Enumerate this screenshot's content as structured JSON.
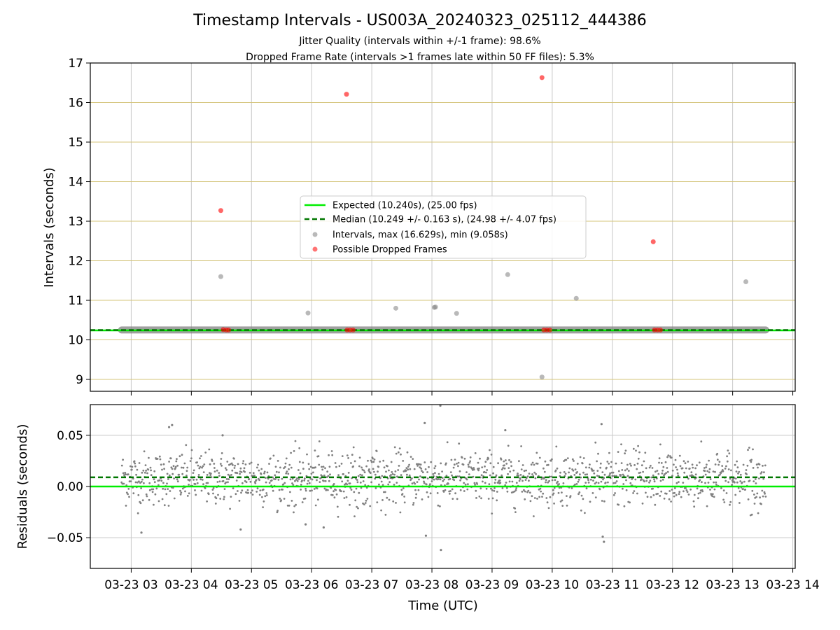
{
  "figure": {
    "title": "Timestamp Intervals - US003A_20240323_025112_444386",
    "subtitle_line1": "Jitter Quality (intervals within +/-1 frame): 98.6%",
    "subtitle_line2": "Dropped Frame Rate (intervals >1 frames late within 50 FF files): 5.3%",
    "xlabel": "Time (UTC)"
  },
  "colors": {
    "expected": "#00ee00",
    "median": "#007700",
    "intervals": "#808080",
    "dropped": "#ff0000",
    "hgrid_top": "#d4c47a",
    "grid": "#c8c8c8"
  },
  "chart_data": [
    {
      "type": "scatter",
      "ylabel": "Intervals (seconds)",
      "ylim": [
        8.7,
        17
      ],
      "yticks": [
        9,
        10,
        11,
        12,
        13,
        14,
        15,
        16,
        17
      ],
      "xlim_hours": [
        2.32,
        14.04
      ],
      "expected_value": 10.24,
      "median_value": 10.249,
      "band": {
        "x_start_hours": 2.84,
        "x_end_hours": 13.55,
        "y": 10.25
      },
      "legend": {
        "position": "center",
        "entries": [
          {
            "label": "Expected (10.240s), (25.00 fps)",
            "kind": "solid-line",
            "color_key": "expected"
          },
          {
            "label": "Median (10.249 +/- 0.163 s), (24.98 +/- 4.07 fps)",
            "kind": "dashed-line",
            "color_key": "median"
          },
          {
            "label": "Intervals, max (16.629s), min (9.058s)",
            "kind": "marker",
            "color_key": "intervals"
          },
          {
            "label": "Possible Dropped Frames",
            "kind": "marker",
            "color_key": "dropped"
          }
        ]
      },
      "series": [
        {
          "name": "Intervals, max (16.629s), min (9.058s)",
          "points": [
            {
              "x": 4.49,
              "y": 11.6
            },
            {
              "x": 5.94,
              "y": 10.68
            },
            {
              "x": 7.4,
              "y": 10.8
            },
            {
              "x": 8.06,
              "y": 10.83
            },
            {
              "x": 8.04,
              "y": 10.82
            },
            {
              "x": 8.41,
              "y": 10.67
            },
            {
              "x": 9.26,
              "y": 11.65
            },
            {
              "x": 9.83,
              "y": 9.06
            },
            {
              "x": 10.4,
              "y": 11.05
            },
            {
              "x": 13.22,
              "y": 11.47
            }
          ]
        },
        {
          "name": "Possible Dropped Frames",
          "points": [
            {
              "x": 4.49,
              "y": 13.27
            },
            {
              "x": 6.58,
              "y": 16.21
            },
            {
              "x": 9.83,
              "y": 16.63
            },
            {
              "x": 11.68,
              "y": 12.48
            },
            {
              "x": 4.53,
              "y": 10.26
            },
            {
              "x": 4.58,
              "y": 10.25
            },
            {
              "x": 4.62,
              "y": 10.25
            },
            {
              "x": 6.59,
              "y": 10.25
            },
            {
              "x": 6.64,
              "y": 10.25
            },
            {
              "x": 6.69,
              "y": 10.25
            },
            {
              "x": 9.86,
              "y": 10.25
            },
            {
              "x": 9.91,
              "y": 10.25
            },
            {
              "x": 9.96,
              "y": 10.25
            },
            {
              "x": 11.7,
              "y": 10.25
            },
            {
              "x": 11.75,
              "y": 10.25
            },
            {
              "x": 11.8,
              "y": 10.25
            }
          ]
        }
      ]
    },
    {
      "type": "scatter",
      "ylabel": "Residuals (seconds)",
      "ylim": [
        -0.08,
        0.08
      ],
      "yticks": [
        0.05,
        0.0,
        -0.05
      ],
      "ytick_labels": [
        "0.05",
        "0.00",
        "−0.05"
      ],
      "expected_value": 0.0,
      "median_value": 0.009,
      "x_range_hours": [
        2.84,
        13.55
      ],
      "residual_mean": 0.008,
      "residual_spread_sd": 0.013,
      "series": [
        {
          "name": "Residuals",
          "outlier_points": [
            {
              "x": 3.17,
              "y": -0.045
            },
            {
              "x": 3.63,
              "y": 0.058
            },
            {
              "x": 3.68,
              "y": 0.06
            },
            {
              "x": 4.52,
              "y": 0.05
            },
            {
              "x": 4.82,
              "y": -0.042
            },
            {
              "x": 5.9,
              "y": -0.037
            },
            {
              "x": 6.2,
              "y": -0.04
            },
            {
              "x": 7.88,
              "y": 0.062
            },
            {
              "x": 7.9,
              "y": -0.048
            },
            {
              "x": 8.14,
              "y": 0.079
            },
            {
              "x": 8.15,
              "y": -0.062
            },
            {
              "x": 9.22,
              "y": 0.055
            },
            {
              "x": 10.82,
              "y": 0.061
            },
            {
              "x": 10.84,
              "y": -0.049
            },
            {
              "x": 10.86,
              "y": -0.054
            }
          ]
        }
      ]
    }
  ],
  "xaxis": {
    "ticks_hours": [
      3,
      4,
      5,
      6,
      7,
      8,
      9,
      10,
      11,
      12,
      13,
      14
    ],
    "tick_labels": [
      "03-23 03",
      "03-23 04",
      "03-23 05",
      "03-23 06",
      "03-23 07",
      "03-23 08",
      "03-23 09",
      "03-23 10",
      "03-23 11",
      "03-23 12",
      "03-23 13",
      "03-23 14"
    ]
  }
}
